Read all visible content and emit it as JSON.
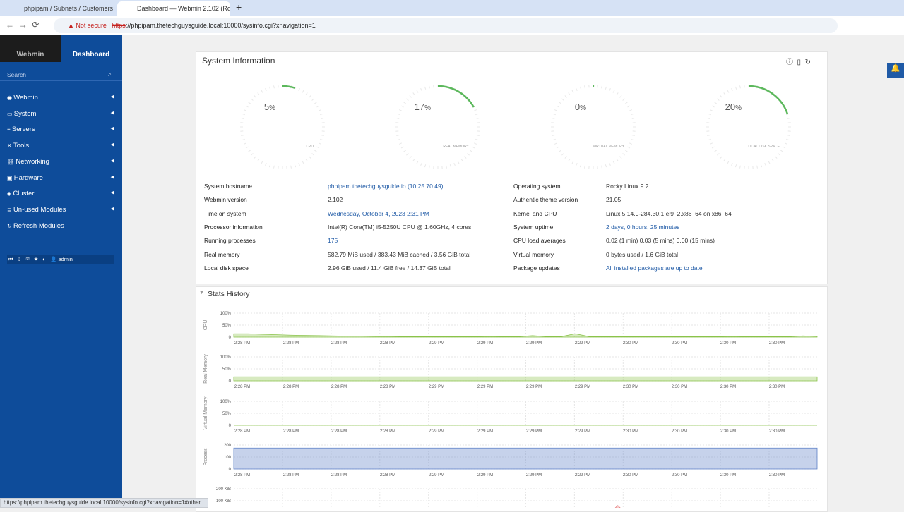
{
  "browser": {
    "tabs": [
      "phpipam / Subnets / Customers",
      "Dashboard — Webmin 2.102 (Ro"
    ],
    "security": "Not secure",
    "url_scheme": "https",
    "url_rest": "://phpipam.thetechguysguide.local:10000/sysinfo.cgi?xnavigation=1",
    "status_bar": "https://phpipam.thetechguysguide.local:10000/sysinfo.cgi?xnavigation=1#other..."
  },
  "sidebar": {
    "tabs": [
      "Webmin",
      "Dashboard"
    ],
    "search": "Search",
    "menu": [
      "Webmin",
      "System",
      "Servers",
      "Tools",
      "Networking",
      "Hardware",
      "Cluster",
      "Un-used Modules",
      "Refresh Modules"
    ],
    "user": "admin"
  },
  "system_info": {
    "title": "System Information",
    "gauges": [
      {
        "value": 5,
        "unit": "%",
        "label": "CPU"
      },
      {
        "value": 17,
        "unit": "%",
        "label": "REAL MEMORY"
      },
      {
        "value": 0,
        "unit": "%",
        "label": "VIRTUAL MEMORY"
      },
      {
        "value": 20,
        "unit": "%",
        "label": "LOCAL DISK SPACE"
      }
    ],
    "left": [
      {
        "label": "System hostname",
        "value": "phpipam.thetechguysguide.io (10.25.70.49)",
        "link": true
      },
      {
        "label": "Webmin version",
        "value": "2.102",
        "link": false
      },
      {
        "label": "Time on system",
        "value": "Wednesday, October 4, 2023 2:31 PM",
        "link": true
      },
      {
        "label": "Processor information",
        "value": "Intel(R) Core(TM) i5-5250U CPU @ 1.60GHz, 4 cores",
        "link": false
      },
      {
        "label": "Running processes",
        "value": "175",
        "link": true
      },
      {
        "label": "Real memory",
        "value": "582.79 MiB used / 383.43 MiB cached / 3.56 GiB total",
        "link": false
      },
      {
        "label": "Local disk space",
        "value": "2.96 GiB used / 11.4 GiB free / 14.37 GiB total",
        "link": false
      }
    ],
    "right": [
      {
        "label": "Operating system",
        "value": "Rocky Linux 9.2",
        "link": false
      },
      {
        "label": "Authentic theme version",
        "value": "21.05",
        "link": false
      },
      {
        "label": "Kernel and CPU",
        "value": "Linux 5.14.0-284.30.1.el9_2.x86_64 on x86_64",
        "link": false
      },
      {
        "label": "System uptime",
        "value": "2 days, 0 hours, 25 minutes",
        "link": true
      },
      {
        "label": "CPU load averages",
        "value": "0.02 (1 min) 0.03 (5 mins) 0.00 (15 mins)",
        "link": false
      },
      {
        "label": "Virtual memory",
        "value": "0 bytes used / 1.6 GiB total",
        "link": false
      },
      {
        "label": "Package updates",
        "value": "All installed packages are up to date",
        "link": true
      }
    ]
  },
  "stats_history": {
    "title": "Stats History",
    "time_labels": [
      "2:28 PM",
      "2:28 PM",
      "2:28 PM",
      "2:28 PM",
      "2:29 PM",
      "2:29 PM",
      "2:29 PM",
      "2:29 PM",
      "2:30 PM",
      "2:30 PM",
      "2:30 PM",
      "2:30 PM"
    ],
    "charts": [
      {
        "label": "CPU",
        "color": "#8bc34a",
        "ylim": [
          0,
          100
        ],
        "yticks": [
          {
            "value": 100,
            "label": "100%"
          },
          {
            "value": 50,
            "label": "50%"
          },
          0
        ],
        "values": [
          14,
          14,
          12,
          10,
          8,
          7,
          6,
          5,
          4,
          4,
          3,
          3,
          2,
          2,
          2,
          2,
          2,
          2,
          3,
          2,
          2,
          6,
          2,
          2,
          14,
          2,
          2,
          2,
          2,
          2,
          2,
          2,
          2,
          2,
          2,
          3,
          2,
          2,
          2,
          2,
          5,
          3
        ]
      },
      {
        "label": "Real Memory",
        "color": "#8bc34a",
        "ylim": [
          0,
          100
        ],
        "yticks": [
          {
            "value": 100,
            "label": "100%"
          },
          {
            "value": 50,
            "label": "50%"
          },
          0
        ],
        "values": [
          17,
          17,
          17,
          17,
          17,
          17,
          17,
          17,
          17,
          17,
          17,
          17,
          17,
          17,
          17,
          17,
          17,
          17,
          17,
          17,
          17,
          17,
          17,
          17,
          17,
          17
        ]
      },
      {
        "label": "Virtual Memory",
        "color": "#8bc34a",
        "ylim": [
          0,
          100
        ],
        "yticks": [
          {
            "value": 100,
            "label": "100%"
          },
          {
            "value": 50,
            "label": "50%"
          },
          0
        ],
        "values": [
          0,
          0,
          0,
          0,
          0,
          0,
          0,
          0,
          0,
          0,
          0,
          0,
          0,
          0,
          0,
          0,
          0,
          0,
          0,
          0,
          0,
          0,
          0,
          0,
          0,
          0
        ]
      },
      {
        "label": "Process",
        "color": "#5b7fc7",
        "ylim": [
          0,
          200
        ],
        "yticks": [
          200,
          100,
          0
        ],
        "values": [
          175,
          175,
          175,
          175,
          175,
          175,
          175,
          175,
          175,
          175,
          175,
          175,
          175,
          175,
          175,
          175,
          175,
          175,
          175,
          175,
          175,
          175,
          175,
          175,
          175,
          175
        ]
      },
      {
        "label": "",
        "color": "#e57373",
        "ylim": [
          0,
          200
        ],
        "yticks": [
          {
            "value": 200,
            "label": "200 KiB"
          },
          {
            "value": 100,
            "label": "100 KiB"
          }
        ],
        "values": [
          2,
          2,
          2,
          2,
          2,
          2,
          2,
          2,
          2,
          2,
          2,
          2,
          2,
          2,
          2,
          2,
          2,
          2,
          2,
          2,
          2,
          2,
          2,
          2,
          2,
          2,
          2,
          2,
          2,
          2,
          2,
          2,
          2,
          2,
          2,
          2,
          2,
          2,
          2,
          2,
          2,
          2,
          2,
          2,
          2,
          2,
          2,
          2,
          2,
          2,
          2,
          2,
          60,
          2,
          2,
          2,
          2,
          2,
          2,
          2,
          2,
          2,
          2,
          2,
          2,
          2,
          2,
          2,
          2,
          2,
          2,
          2,
          2,
          2,
          2,
          2,
          2,
          2,
          2,
          2
        ]
      }
    ]
  }
}
